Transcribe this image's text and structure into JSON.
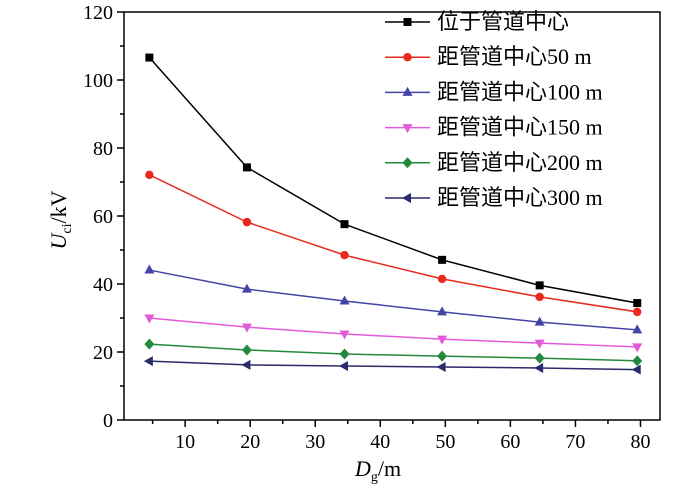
{
  "chart_data": {
    "type": "line",
    "x": [
      4.5,
      19.5,
      34.5,
      49.5,
      64.5,
      79.5
    ],
    "series": [
      {
        "name": "位于管道中心",
        "color": "#000000",
        "marker": "square",
        "values": [
          106.6,
          74.3,
          57.6,
          47.1,
          39.6,
          34.4
        ]
      },
      {
        "name": "距管道中心50 m",
        "color": "#e8291c",
        "marker": "circle",
        "values": [
          72.1,
          58.2,
          48.5,
          41.5,
          36.2,
          31.8
        ]
      },
      {
        "name": "距管道中心100 m",
        "color": "#4444a6",
        "marker": "triangle-up",
        "values": [
          44.1,
          38.5,
          35.0,
          31.8,
          28.8,
          26.5
        ]
      },
      {
        "name": "距管道中心150 m",
        "color": "#e35ad9",
        "marker": "triangle-down",
        "values": [
          30.0,
          27.3,
          25.3,
          23.8,
          22.6,
          21.5
        ]
      },
      {
        "name": "距管道中心200 m",
        "color": "#23893d",
        "marker": "diamond",
        "values": [
          22.3,
          20.6,
          19.4,
          18.8,
          18.2,
          17.4
        ]
      },
      {
        "name": "距管道中心300 m",
        "color": "#2b2a6b",
        "marker": "triangle-left",
        "values": [
          17.3,
          16.2,
          15.9,
          15.6,
          15.3,
          14.8
        ]
      }
    ],
    "xlabel": {
      "symbol": "D",
      "subscript": "g",
      "unit": "/m"
    },
    "ylabel": {
      "symbol": "U",
      "subscript": "ci",
      "unit": "/kV"
    },
    "xlim": [
      0.6,
      83
    ],
    "ylim": [
      0,
      120
    ],
    "xticks": [
      10,
      20,
      30,
      40,
      50,
      60,
      70,
      80
    ],
    "yticks": [
      0,
      20,
      40,
      60,
      80,
      100,
      120
    ],
    "grid": false,
    "legend": "top-right"
  }
}
